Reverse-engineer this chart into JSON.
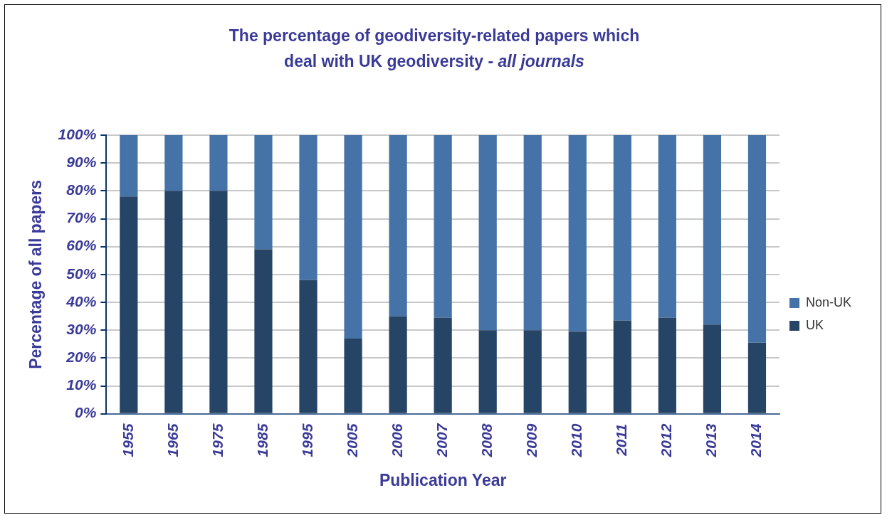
{
  "chart_data": {
    "type": "bar",
    "title": "The percentage of geodiversity-related papers which deal with UK geodiversity - all journals",
    "xlabel": "Publication Year",
    "ylabel": "Percentage of all papers",
    "categories": [
      "1955",
      "1965",
      "1975",
      "1985",
      "1995",
      "2005",
      "2006",
      "2007",
      "2008",
      "2009",
      "2010",
      "2011",
      "2012",
      "2013",
      "2014"
    ],
    "series": [
      {
        "name": "UK",
        "color": "#264466",
        "values": [
          78,
          80,
          80,
          59,
          48,
          27,
          35,
          34.5,
          30,
          30,
          29.5,
          33.5,
          34.5,
          32,
          25.5
        ]
      },
      {
        "name": "Non-UK",
        "color": "#4573a7",
        "values": [
          22,
          20,
          20,
          41,
          52,
          73,
          65,
          65.5,
          70,
          70,
          70.5,
          66.5,
          65.5,
          68,
          74.5
        ]
      }
    ],
    "stacked": true,
    "ylim": [
      0,
      100
    ],
    "yticks": [
      {
        "value": 0,
        "label": "0%"
      },
      {
        "value": 10,
        "label": "10%"
      },
      {
        "value": 20,
        "label": "20%"
      },
      {
        "value": 30,
        "label": "30%"
      },
      {
        "value": 40,
        "label": "40%"
      },
      {
        "value": 50,
        "label": "50%"
      },
      {
        "value": 60,
        "label": "60%"
      },
      {
        "value": 70,
        "label": "70%"
      },
      {
        "value": 80,
        "label": "80%"
      },
      {
        "value": 90,
        "label": "90%"
      },
      {
        "value": 100,
        "label": "100%"
      }
    ],
    "grid": "y",
    "legend": "right"
  }
}
